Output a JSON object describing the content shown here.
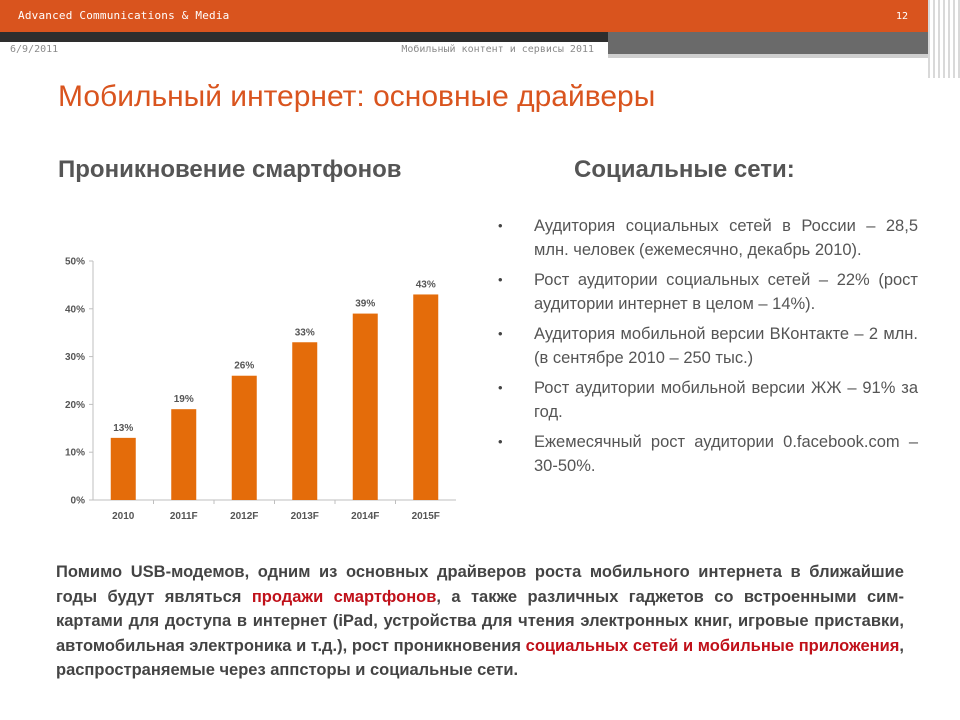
{
  "header": {
    "company": "Advanced Communications & Media",
    "page_number": "12",
    "date": "6/9/2011",
    "subtitle": "Мобильный контент и сервисы 2011"
  },
  "slide": {
    "title": "Мобильный интернет: основные драйверы",
    "left_heading": "Проникновение смартфонов",
    "right_heading": "Социальные сети:"
  },
  "chart_data": {
    "type": "bar",
    "categories": [
      "2010",
      "2011F",
      "2012F",
      "2013F",
      "2014F",
      "2015F"
    ],
    "values": [
      13,
      19,
      26,
      33,
      39,
      43
    ],
    "data_labels": [
      "13%",
      "19%",
      "26%",
      "33%",
      "39%",
      "43%"
    ],
    "y_ticks": [
      "0%",
      "10%",
      "20%",
      "30%",
      "40%",
      "50%"
    ],
    "ylim": [
      0,
      50
    ],
    "grid": false,
    "bar_color": "#e46c0a"
  },
  "bullets": [
    "Аудитория социальных сетей в России – 28,5 млн. человек (ежемесячно, декабрь 2010).",
    "Рост аудитории социальных сетей – 22% (рост аудитории интернет в целом – 14%).",
    "Аудитория мобильной версии ВКонтакте – 2 млн. (в сентябре 2010 – 250 тыс.)",
    "Рост аудитории мобильной версии ЖЖ – 91% за год.",
    "Ежемесячный рост аудитории 0.facebook.com – 30-50%."
  ],
  "bottom": {
    "part1": "Помимо USB-модемов, одним из основных драйверов роста мобильного интернета в ближайшие годы будут являться ",
    "highlight1": "продажи смартфонов",
    "part2": ", а также различных гаджетов со встроенными сим-картами для доступа в интернет (iPad, устройства для чтения электронных книг, игровые приставки, автомобильная электроника и т.д.), рост проникновения ",
    "highlight2": "социальных сетей и мобильные приложения",
    "part3": ", распространяемые через аппсторы и социальные сети."
  },
  "colors": {
    "accent": "#d9541e",
    "highlight": "#c0111a",
    "text": "#555555"
  }
}
